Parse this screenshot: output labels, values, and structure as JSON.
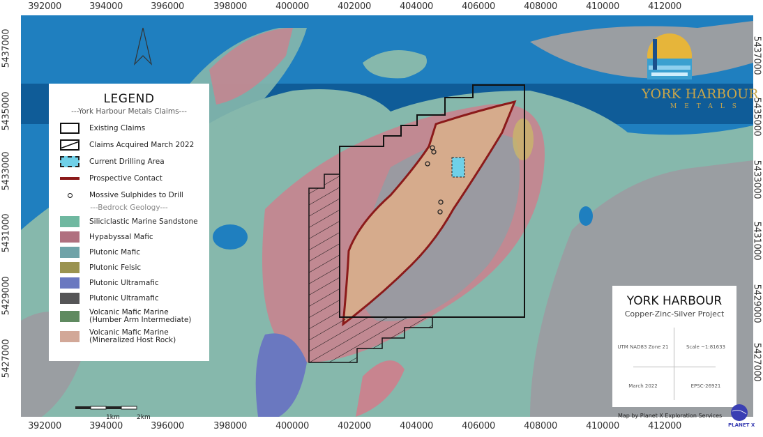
{
  "axes": {
    "easting": [
      "392000",
      "394000",
      "396000",
      "398000",
      "400000",
      "402000",
      "404000",
      "406000",
      "408000",
      "410000",
      "412000"
    ],
    "northing": [
      "5437000",
      "5435000",
      "5433000",
      "5431000",
      "5429000",
      "5427000"
    ]
  },
  "legend": {
    "title": "LEGEND",
    "claims_heading": "---York Harbour Metals Claims---",
    "claims": [
      {
        "label": "Existing Claims"
      },
      {
        "label": "Claims Acquired March 2022"
      },
      {
        "label": "Current Drilling Area",
        "color": "#6fd0e8"
      },
      {
        "label": "Prospective Contact",
        "color": "#8b1a1a"
      },
      {
        "label": "Mossive Sulphides to Drill"
      }
    ],
    "geology_heading": "---Bedrock Geology---",
    "geology": [
      {
        "label": "Siliciclastic Marine Sandstone",
        "color": "#6fb8a0"
      },
      {
        "label": "Hypabyssal Mafic",
        "color": "#b0707f"
      },
      {
        "label": "Plutonic Mafic",
        "color": "#6fa3a8"
      },
      {
        "label": "Plutonic Felsic",
        "color": "#9a9350"
      },
      {
        "label": "Plutonic Ultramafic",
        "color": "#6a78c0"
      },
      {
        "label": "Plutonic Ultramafic",
        "color": "#555557"
      },
      {
        "label": "Volcanic Mafic Marine",
        "label2": "(Humber Arm Intermediate)",
        "color": "#5f8a60"
      },
      {
        "label": "Volcanic Mafic Marine",
        "label2": "(Mineralized Host Rock)",
        "color": "#d2a898"
      }
    ]
  },
  "title_block": {
    "title": "YORK HARBOUR",
    "subtitle": "Copper-Zinc-Silver Project",
    "projection": "UTM NAD83 Zone 21",
    "scale": "Scale ~1:81633",
    "date": "March 2022",
    "id": "EPSC-26921",
    "credit": "Map by Planet X Exploration Services"
  },
  "logo": {
    "name": "YORK HARBOUR",
    "sub": "METALS"
  },
  "planet_x_logo": "PLANET X",
  "scale_bar": {
    "labels": [
      "1km",
      "2km"
    ]
  },
  "north_arrow": "north-arrow-icon",
  "colors": {
    "sea": "#1f7fbf",
    "sea_dark": "#0f5c98",
    "land": "#86b8ac",
    "hypabyssal": "#c8848f",
    "host_rock": "#d6ab8c",
    "contact": "#8b1a1a",
    "drill": "#6fd0e8"
  }
}
